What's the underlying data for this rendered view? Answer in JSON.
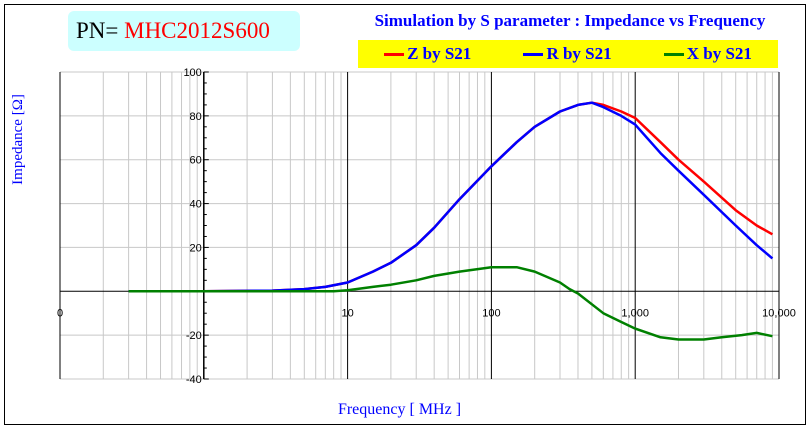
{
  "header": {
    "pn_label": "PN=",
    "pn_value": "MHC2012S600"
  },
  "chart_data": {
    "type": "line",
    "title": "Simulation by S parameter : Impedance vs Frequency",
    "xlabel": "Frequency [ MHz ]",
    "ylabel": "Impedance [Ω]",
    "xscale": "log",
    "xlim": [
      0.1,
      10000
    ],
    "ylim": [
      -40,
      100
    ],
    "xticks": [
      {
        "v": 0.1,
        "label": "0"
      },
      {
        "v": 10,
        "label": "10"
      },
      {
        "v": 100,
        "label": "100"
      },
      {
        "v": 1000,
        "label": "1,000"
      },
      {
        "v": 10000,
        "label": "10,000"
      }
    ],
    "yticks": [
      {
        "v": 100,
        "label": "100"
      },
      {
        "v": 80,
        "label": "80"
      },
      {
        "v": 60,
        "label": "60"
      },
      {
        "v": 40,
        "label": "40"
      },
      {
        "v": 20,
        "label": "20"
      },
      {
        "v": -20,
        "label": "-20"
      },
      {
        "v": -40,
        "label": "-40"
      }
    ],
    "legend_placement": "top",
    "grid": true,
    "series": [
      {
        "name": "Z by S21",
        "color": "#ff0000",
        "x": [
          0.3,
          1,
          3,
          5,
          7,
          10,
          15,
          20,
          30,
          40,
          60,
          100,
          150,
          200,
          300,
          400,
          500,
          600,
          800,
          1000,
          1500,
          2000,
          3000,
          5000,
          7000,
          9000
        ],
        "y": [
          0,
          0,
          0.3,
          1,
          2,
          4,
          9,
          13,
          21,
          29,
          42,
          57,
          68,
          75,
          82,
          85,
          86,
          85,
          82,
          79,
          68,
          60,
          50,
          37,
          30,
          26
        ]
      },
      {
        "name": "R by S21",
        "color": "#0000ff",
        "x": [
          0.3,
          1,
          3,
          5,
          7,
          10,
          15,
          20,
          30,
          40,
          60,
          100,
          150,
          200,
          300,
          400,
          500,
          600,
          800,
          1000,
          1500,
          2000,
          3000,
          5000,
          7000,
          9000
        ],
        "y": [
          0,
          0,
          0.3,
          1,
          2,
          4,
          9,
          13,
          21,
          29,
          42,
          57,
          68,
          75,
          82,
          85,
          86,
          84,
          80,
          76,
          63,
          55,
          44,
          30,
          21,
          15
        ]
      },
      {
        "name": "X by S21",
        "color": "#008000",
        "x": [
          0.3,
          1,
          3,
          5,
          8,
          10,
          15,
          20,
          30,
          40,
          60,
          100,
          150,
          200,
          300,
          350,
          400,
          600,
          800,
          1000,
          1500,
          2000,
          3000,
          4000,
          5500,
          7000,
          9000
        ],
        "y": [
          0,
          0,
          0,
          0,
          0,
          0.5,
          2,
          3,
          5,
          7,
          9,
          11,
          11,
          9,
          4,
          1,
          -1,
          -10,
          -14,
          -17,
          -21,
          -22,
          -22,
          -21,
          -20,
          -19,
          -20.5
        ]
      }
    ]
  }
}
